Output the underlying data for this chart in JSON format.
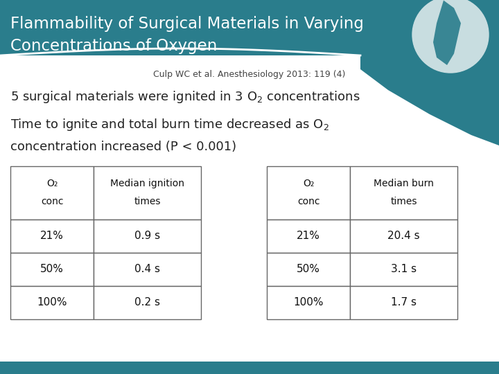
{
  "title_line1": "Flammability of Surgical Materials in Varying",
  "title_line2": "Concentrations of Oxygen",
  "citation": "Culp WC et al. Anesthesiology 2013: 119 (4)",
  "bullet1": "5 surgical materials were ignited in 3 O$_2$ concentrations",
  "bullet2_line1": "Time to ignite and total burn time decreased as O$_2$",
  "bullet2_line2": "concentration increased (P < 0.001)",
  "table1_headers_line1": [
    "O₂",
    "Median ignition"
  ],
  "table1_headers_line2": [
    "conc",
    "times"
  ],
  "table1_rows": [
    [
      "21%",
      "0.9 s"
    ],
    [
      "50%",
      "0.4 s"
    ],
    [
      "100%",
      "0.2 s"
    ]
  ],
  "table2_headers_line1": [
    "O₂",
    "Median burn"
  ],
  "table2_headers_line2": [
    "conc",
    "times"
  ],
  "table2_rows": [
    [
      "21%",
      "20.4 s"
    ],
    [
      "50%",
      "3.1 s"
    ],
    [
      "100%",
      "1.7 s"
    ]
  ],
  "bg_color": "#ffffff",
  "teal_color": "#2a7d8c",
  "title_color": "#ffffff",
  "text_color": "#222222",
  "table_border_color": "#666666"
}
